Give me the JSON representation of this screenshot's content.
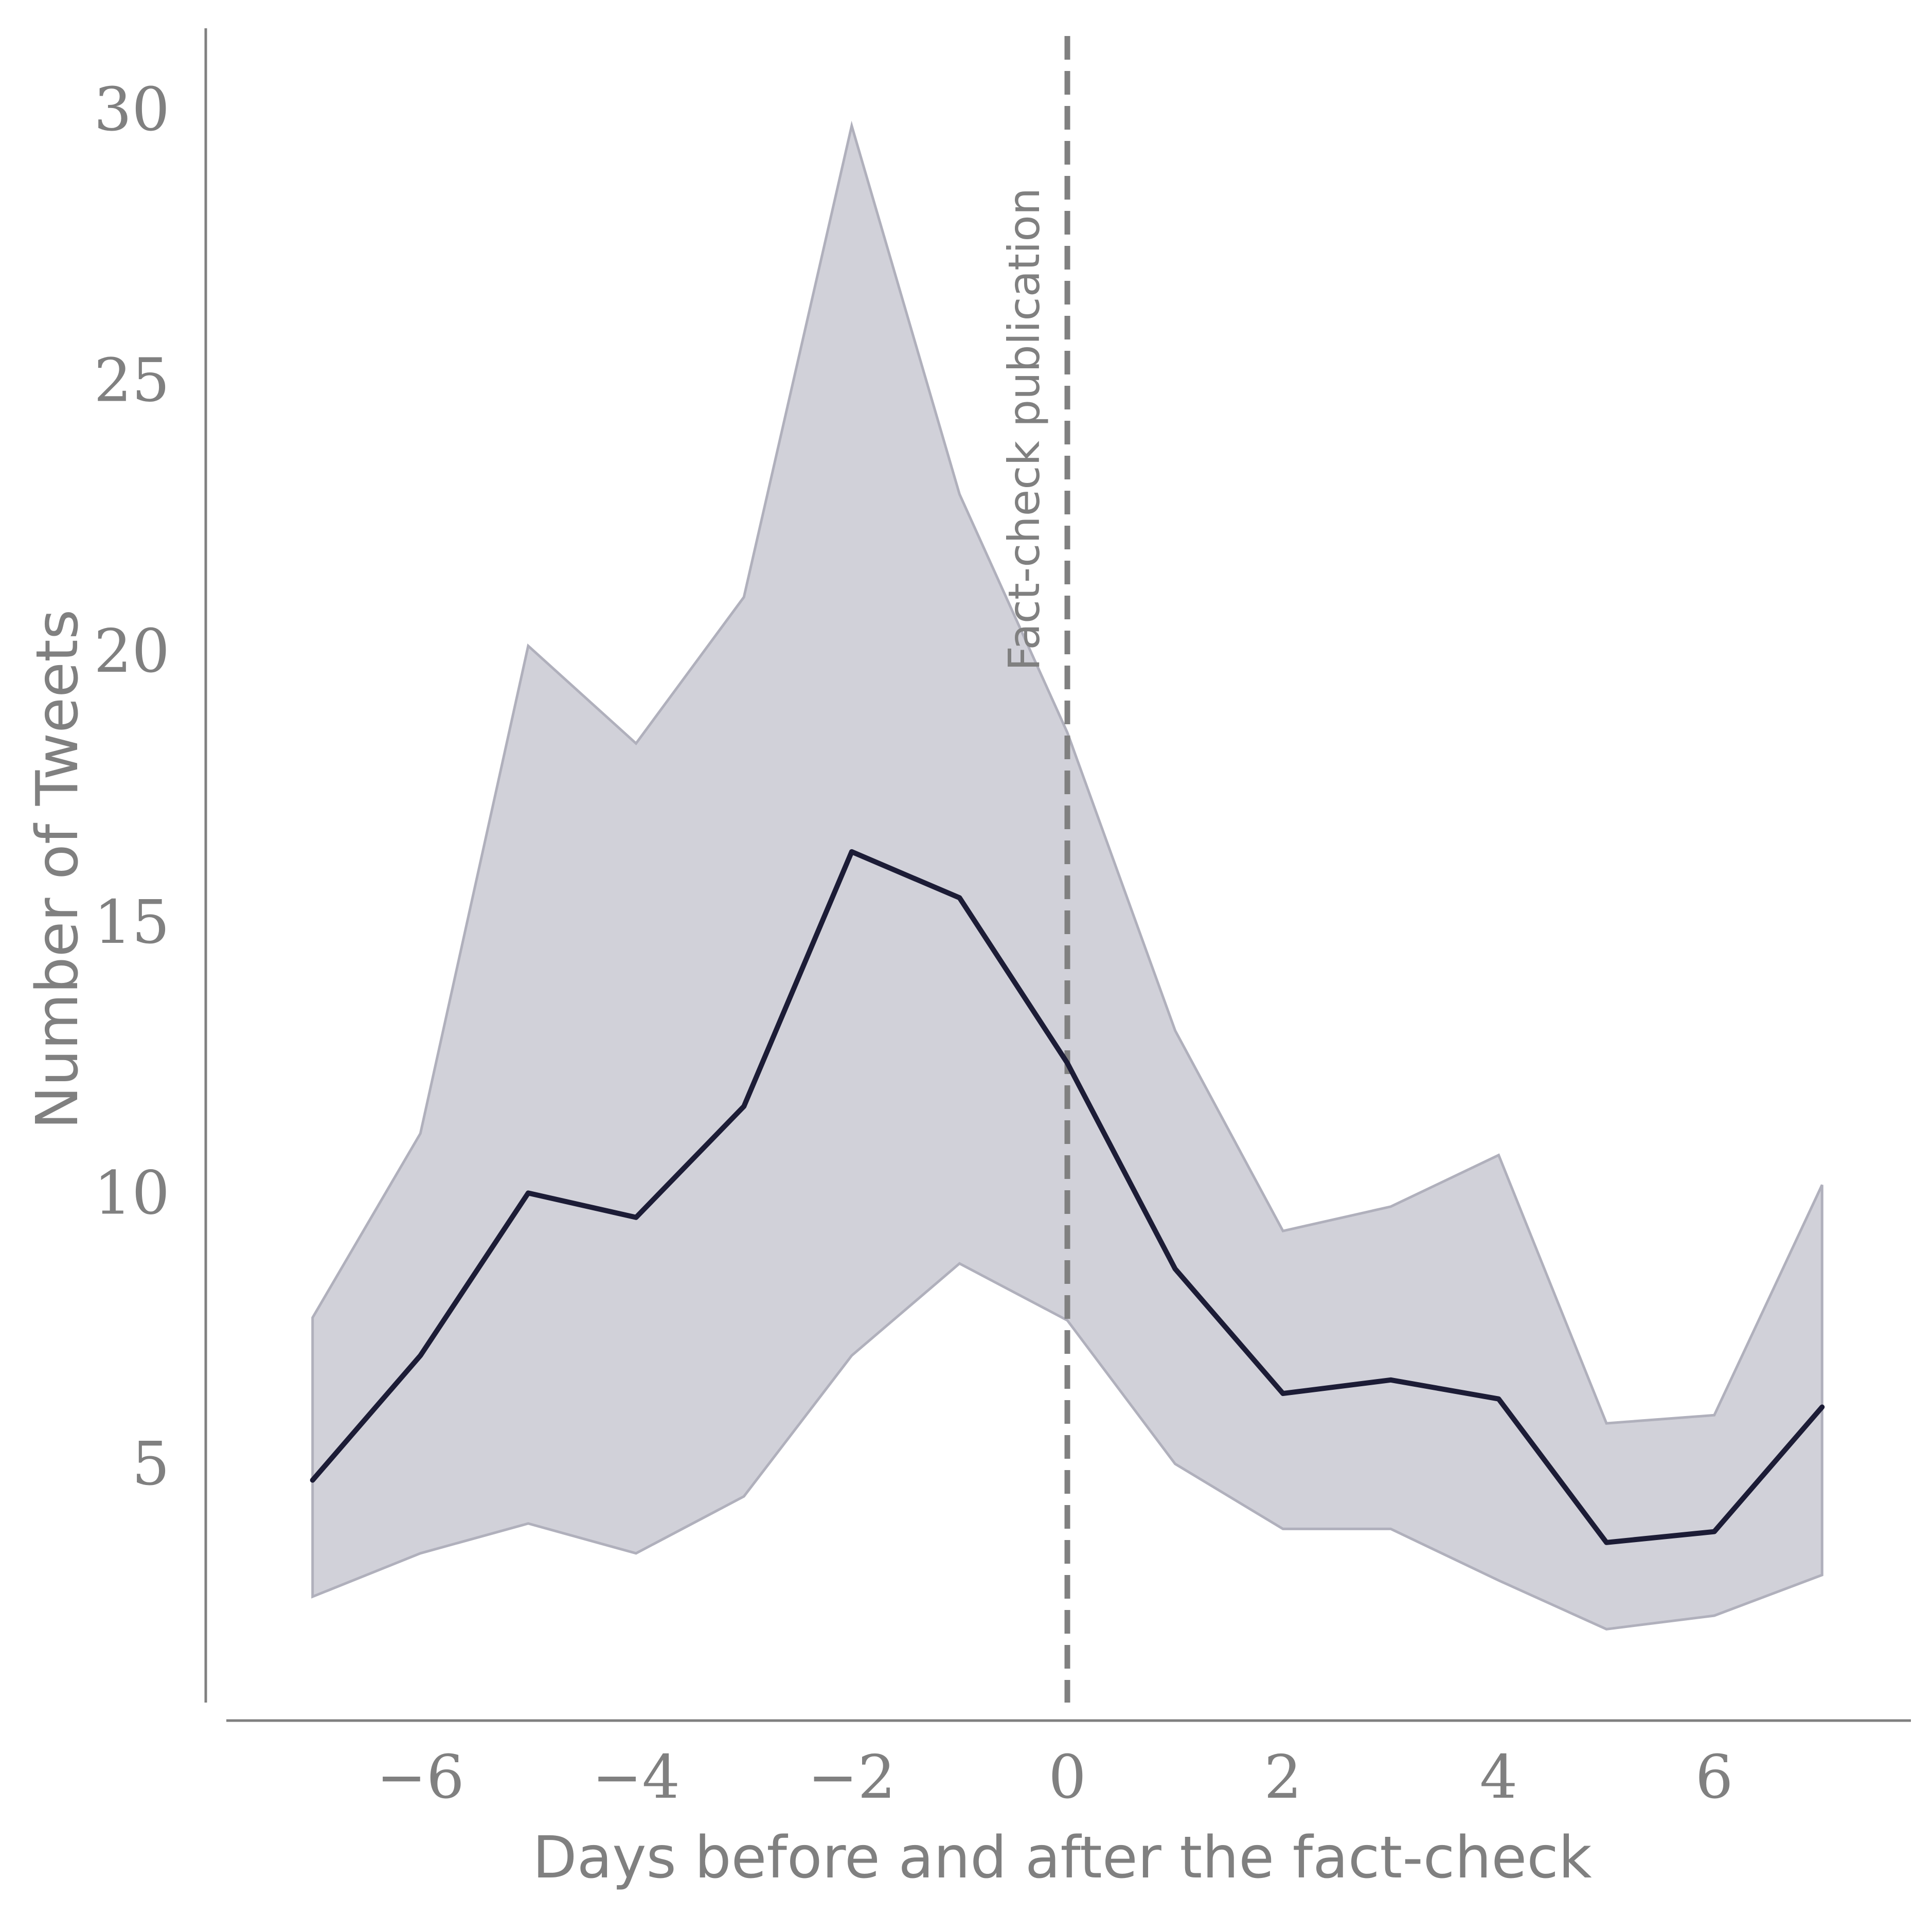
{
  "chart_data": {
    "type": "line",
    "title": "",
    "xlabel": "Days before and after the fact-check",
    "ylabel": "Number of Tweets",
    "xlim": [
      -7.8,
      7.8
    ],
    "ylim": [
      0.5,
      31.5
    ],
    "x_ticks": [
      -6,
      -4,
      -2,
      0,
      2,
      4,
      6
    ],
    "x_tick_labels": [
      "−6",
      "−4",
      "−2",
      "0",
      "2",
      "4",
      "6"
    ],
    "y_ticks": [
      5,
      10,
      15,
      20,
      25,
      30
    ],
    "y_tick_labels": [
      "5",
      "10",
      "15",
      "20",
      "25",
      "30"
    ],
    "grid": false,
    "series": [
      {
        "x": [
          -7,
          -6,
          -5,
          -4,
          -3,
          -2,
          -1,
          0,
          1,
          2,
          3,
          4,
          5,
          6,
          7
        ],
        "values": [
          4.7,
          7.0,
          10.0,
          9.55,
          11.6,
          16.3,
          15.45,
          12.4,
          8.6,
          6.3,
          6.55,
          6.2,
          3.55,
          3.75,
          6.05
        ],
        "lower": [
          2.55,
          3.35,
          3.9,
          3.35,
          4.4,
          7.0,
          8.7,
          7.65,
          5.0,
          3.8,
          3.8,
          2.85,
          1.95,
          2.2,
          2.95
        ],
        "upper": [
          7.7,
          11.1,
          20.1,
          18.3,
          21.0,
          29.7,
          22.9,
          18.5,
          13.0,
          9.3,
          9.75,
          10.7,
          5.75,
          5.9,
          10.15
        ]
      }
    ],
    "vline": {
      "x": 0,
      "label": "Fact-check publication"
    },
    "colors": {
      "line": "#1c1c36",
      "band": "#d1d1d9",
      "band_edge": "#b0b0bc",
      "axis": "#808080",
      "vline": "#808080",
      "text": "#808080"
    }
  }
}
